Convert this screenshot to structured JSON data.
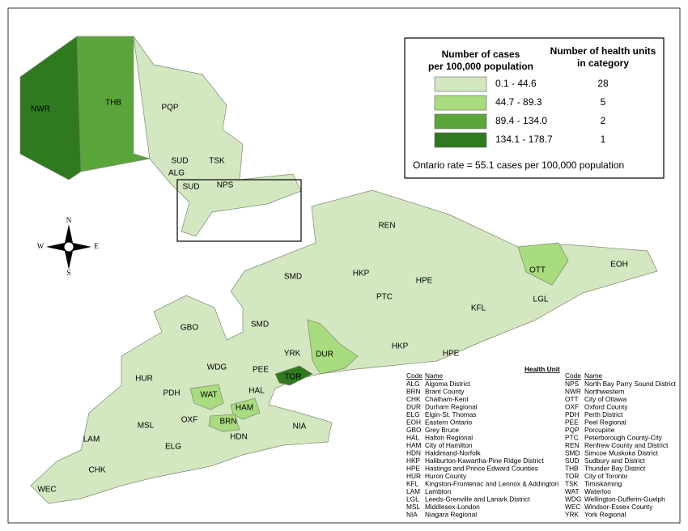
{
  "legend": {
    "cases_header": [
      "Number of cases",
      "per 100,000 population"
    ],
    "units_header": [
      "Number of health units",
      "in category"
    ],
    "categories": [
      {
        "range": "0.1 - 44.6",
        "count": 28,
        "color": "#d3e7c1"
      },
      {
        "range": "44.7 - 89.3",
        "count": 5,
        "color": "#a9dc7e"
      },
      {
        "range": "89.4 - 134.0",
        "count": 2,
        "color": "#5ba63b"
      },
      {
        "range": "134.1 - 178.7",
        "count": 1,
        "color": "#2f7a1e"
      }
    ],
    "rate": "Ontario rate = 55.1 cases per 100,000 population"
  },
  "compass": [
    "N",
    "E",
    "S",
    "W"
  ],
  "map_labels": [
    "NWR",
    "THB",
    "PQP",
    "SUD",
    "TSK",
    "ALG",
    "SUD",
    "NPS",
    "REN",
    "SMD",
    "HKP",
    "OTT",
    "EOH",
    "HPE",
    "KFL",
    "LGL",
    "PTC",
    "GBO",
    "SMD",
    "HKP",
    "HPE",
    "YRK",
    "DUR",
    "WDG",
    "PEE",
    "TOR",
    "HUR",
    "HAL",
    "PDH",
    "WAT",
    "HAM",
    "OXF",
    "BRN",
    "MSL",
    "NIA",
    "HDN",
    "LAM",
    "ELG",
    "CHK",
    "WEC"
  ],
  "table": {
    "title": "Health Unit",
    "code_header": "Code",
    "name_header": "Name",
    "left": [
      [
        "ALG",
        "Algoma District"
      ],
      [
        "BRN",
        "Brant County"
      ],
      [
        "CHK",
        "Chatham-Kent"
      ],
      [
        "DUR",
        "Durham Regional"
      ],
      [
        "ELG",
        "Elgin-St. Thomas"
      ],
      [
        "EOH",
        "Eastern Ontario"
      ],
      [
        "GBO",
        "Grey Bruce"
      ],
      [
        "HAL",
        "Halton Regional"
      ],
      [
        "HAM",
        "City of Hamilton"
      ],
      [
        "HDN",
        "Haldimand-Norfolk"
      ],
      [
        "HKP",
        "Haliburton-Kawartha-Pine Ridge District"
      ],
      [
        "HPE",
        "Hastings and Prince Edward Counties"
      ],
      [
        "HUR",
        "Huron County"
      ],
      [
        "KFL",
        "Kingston-Frontenac and Lennox & Addington"
      ],
      [
        "LAM",
        "Lambton"
      ],
      [
        "LGL",
        "Leeds-Grenville and Lanark District"
      ],
      [
        "MSL",
        "Middlesex-London"
      ],
      [
        "NIA",
        "Niagara Regional"
      ]
    ],
    "right": [
      [
        "NPS",
        "North Bay Parry Sound District"
      ],
      [
        "NWR",
        "Northwestern"
      ],
      [
        "OTT",
        "City of Ottawa"
      ],
      [
        "OXF",
        "Oxford County"
      ],
      [
        "PDH",
        "Perth District"
      ],
      [
        "PEE",
        "Peel Regional"
      ],
      [
        "PQP",
        "Porcupine"
      ],
      [
        "PTC",
        "Peterborough County-City"
      ],
      [
        "REN",
        "Renfrew County and District"
      ],
      [
        "SMD",
        "Simcoe Muskoka District"
      ],
      [
        "SUD",
        "Sudbury and District"
      ],
      [
        "THB",
        "Thunder Bay District"
      ],
      [
        "TOR",
        "City of Toronto"
      ],
      [
        "TSK",
        "Timiskaming"
      ],
      [
        "WAT",
        "Waterloo"
      ],
      [
        "WDG",
        "Wellington-Dufferin-Guelph"
      ],
      [
        "WEC",
        "Windsor-Essex County"
      ],
      [
        "YRK",
        "York Regional"
      ]
    ]
  }
}
